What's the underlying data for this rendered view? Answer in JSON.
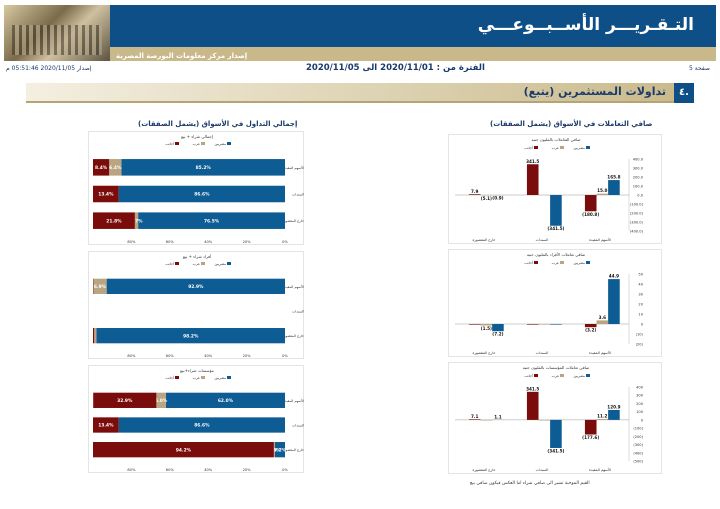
{
  "header": {
    "title": "التـقـريـــر الأســبــوعـــي",
    "subtitle": "إصدار مركز معلومات البورصة المصرية"
  },
  "meta": {
    "issue_label": "إصدار",
    "issue_date": "2020/11/05 05:51:46 م",
    "period": "الفترة من : 2020/11/01 الى 2020/11/05",
    "page": "صفحة 5"
  },
  "section": {
    "number": "٤.",
    "title": "تداولات المستثمرين (يتبع)"
  },
  "left_header": "إجمالي التداول في الأسواق (يشمل الصفقات)",
  "right_header": "صافي التعاملات في الأسواق (يشمل الصفقات)",
  "footnote": "القيم الموجبة تشير الى صافي شراء اما العكس فيكون صافي بيع",
  "colors": {
    "blue": "#0d5c94",
    "tan": "#b9a582",
    "red": "#7a0c0c"
  },
  "chart_data": [
    {
      "type": "bar",
      "title": "صافي التعاملات بالمليون جنيه",
      "categories": [
        "الأسهم المقيدة",
        "السندات",
        "خارج المقصورة"
      ],
      "series": [
        {
          "name": "مصريين",
          "values": [
            165.8,
            -341.5,
            -0.9
          ]
        },
        {
          "name": "عرب",
          "values": [
            15.0,
            -1.5,
            -5.1
          ]
        },
        {
          "name": "أجانب",
          "values": [
            -180.8,
            341.5,
            7.9
          ]
        }
      ],
      "ylim": [
        -400,
        400
      ],
      "ticks": [
        "400.0",
        "300.0",
        "200.0",
        "100.0",
        "0.0",
        "(100.0)",
        "(200.0)",
        "(300.0)",
        "(400.0)"
      ],
      "labels": [
        [
          "165.8",
          "15.0",
          "(180.8)"
        ],
        [
          "(341.5)",
          "",
          "341.5"
        ],
        [
          "(0.9)",
          "(5.1)",
          "7.9"
        ]
      ]
    },
    {
      "type": "bar",
      "title": "صافي تعاملات الأفراد بالمليون جنيه",
      "categories": [
        "الأسهم المقيدة",
        "السندات",
        "خارج المقصورة"
      ],
      "series": [
        {
          "name": "مصريين",
          "values": [
            44.9,
            0,
            -7.2
          ]
        },
        {
          "name": "عرب",
          "values": [
            3.6,
            0,
            -1.5
          ]
        },
        {
          "name": "أجانب",
          "values": [
            -3.2,
            0,
            0
          ]
        }
      ],
      "ylim": [
        -20,
        50
      ],
      "ticks": [
        "50",
        "40",
        "30",
        "20",
        "10",
        "0",
        "(10)",
        "(20)"
      ],
      "labels": [
        [
          "44.9",
          "3.6",
          "(3.2)"
        ],
        [
          "",
          "",
          ""
        ],
        [
          "(7.2)",
          "(1.5)",
          ""
        ]
      ]
    },
    {
      "type": "bar",
      "title": "صافي تعاملات المؤسسات بالمليون جنيه",
      "categories": [
        "الأسهم المقيدة",
        "السندات",
        "خارج المقصورة"
      ],
      "series": [
        {
          "name": "مصريين",
          "values": [
            120.9,
            -341.5,
            1.1
          ]
        },
        {
          "name": "عرب",
          "values": [
            11.2,
            0,
            0
          ]
        },
        {
          "name": "أجانب",
          "values": [
            -177.6,
            341.5,
            7.1
          ]
        }
      ],
      "ylim": [
        -500,
        400
      ],
      "ticks": [
        "400",
        "300",
        "200",
        "100",
        "0",
        "(100)",
        "(200)",
        "(300)",
        "(400)",
        "(500)"
      ],
      "labels": [
        [
          "120.9",
          "11.2",
          "(177.6)"
        ],
        [
          "(341.5)",
          "",
          "341.5"
        ],
        [
          "1.1",
          "",
          "7.1"
        ]
      ]
    },
    {
      "type": "bar",
      "title": "إجمالي شراء + بيع",
      "categories": [
        "الأسهم المقيدة",
        "السندات",
        "خارج المقصورة"
      ],
      "series": [
        {
          "name": "مصريين",
          "values": [
            85.2,
            86.6,
            76.5
          ]
        },
        {
          "name": "عرب",
          "values": [
            6.4,
            0,
            1.7
          ]
        },
        {
          "name": "أجانب",
          "values": [
            8.4,
            13.4,
            21.8
          ]
        }
      ],
      "labels": [
        [
          "85.2%",
          "6.4%",
          "8.4%"
        ],
        [
          "86.6%",
          "",
          "13.4%"
        ],
        [
          "76.5%",
          "1.7%",
          "21.8%"
        ]
      ]
    },
    {
      "type": "bar",
      "title": "أفراد شراء + بيع",
      "categories": [
        "الأسهم المقيدة",
        "السندات",
        "خارج المقصورة"
      ],
      "series": [
        {
          "name": "مصريين",
          "values": [
            92.9,
            0,
            98.2
          ]
        },
        {
          "name": "عرب",
          "values": [
            6.9,
            0,
            1.2
          ]
        },
        {
          "name": "أجانب",
          "values": [
            0.2,
            0,
            0.6
          ]
        }
      ],
      "labels": [
        [
          "92.9%",
          "6.9%",
          ""
        ],
        [
          "",
          "",
          ""
        ],
        [
          "98.2%",
          "",
          ""
        ]
      ]
    },
    {
      "type": "bar",
      "title": "مؤسسات شراء+بيع",
      "categories": [
        "الأسهم المقيدة",
        "السندات",
        "خارج المقصورة"
      ],
      "series": [
        {
          "name": "مصريين",
          "values": [
            62.0,
            86.6,
            5.2
          ]
        },
        {
          "name": "عرب",
          "values": [
            5.0,
            0,
            0.6
          ]
        },
        {
          "name": "أجانب",
          "values": [
            32.9,
            13.4,
            94.2
          ]
        }
      ],
      "labels": [
        [
          "62.0%",
          "5.0%",
          "32.9%"
        ],
        [
          "86.6%",
          "",
          "13.4%"
        ],
        [
          "5.2%",
          "0.6%",
          "94.2%"
        ]
      ]
    }
  ],
  "pct_ticks": [
    "80%",
    "60%",
    "40%",
    "20%",
    "0%"
  ],
  "legend": [
    "مصريين",
    "عرب",
    "أجانب"
  ]
}
